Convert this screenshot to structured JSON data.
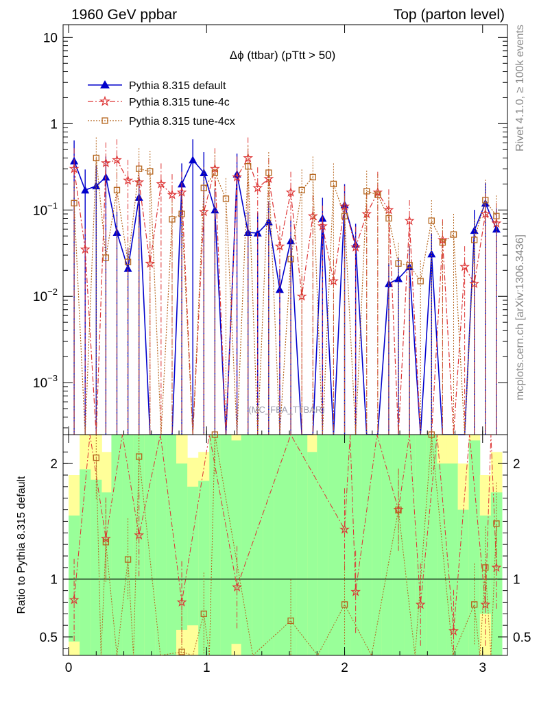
{
  "header": {
    "left": "1960 GeV ppbar",
    "right": "Top (parton level)"
  },
  "side_labels": {
    "rivet": "Rivet 4.1.0, ≥ 100k events",
    "site": "mcplots.cern.ch [arXiv:1306.3436]"
  },
  "watermark": "(MC_FBA_TTBAR)",
  "chart_data": [
    {
      "type": "line",
      "panel": "main",
      "title": "Δϕ (ttbar) (pTtt > 50)",
      "xlabel": "",
      "ylabel": "",
      "yscale": "log",
      "xlim": [
        -0.04,
        3.18
      ],
      "ylim": [
        0.00025,
        14
      ],
      "xticks": [
        "0",
        "1",
        "2",
        "3"
      ],
      "yticks": [
        {
          "value": 10,
          "label": "10"
        },
        {
          "value": 1,
          "label": "1"
        },
        {
          "value": 0.1,
          "label": "10^-1"
        },
        {
          "value": 0.01,
          "label": "10^-2"
        },
        {
          "value": 0.001,
          "label": "10^-3"
        }
      ],
      "legend_position": "top-left",
      "series": [
        {
          "name": "Pythia 8.315 default",
          "color": "#0000cc",
          "marker": "triangle",
          "line": "solid",
          "x": [
            0.04,
            0.12,
            0.2,
            0.27,
            0.35,
            0.43,
            0.51,
            0.59,
            0.67,
            0.75,
            0.82,
            0.9,
            0.98,
            1.06,
            1.14,
            1.22,
            1.3,
            1.37,
            1.45,
            1.53,
            1.61,
            1.69,
            1.77,
            1.84,
            1.92,
            2.0,
            2.08,
            2.16,
            2.24,
            2.32,
            2.39,
            2.47,
            2.55,
            2.63,
            2.71,
            2.79,
            2.87,
            2.94,
            3.02,
            3.1
          ],
          "y": [
            0.37,
            0.17,
            0.19,
            0.24,
            0.055,
            0.021,
            0.14,
            0,
            0,
            0,
            0.2,
            0.38,
            0.27,
            0.1,
            0,
            0.26,
            0.055,
            0.054,
            0.073,
            0.012,
            0.044,
            0,
            0,
            0.08,
            0,
            0.115,
            0.04,
            0,
            0,
            0.014,
            0.016,
            0.022,
            0,
            0.031,
            0,
            0,
            0,
            0.058,
            0.12,
            0.06
          ]
        },
        {
          "name": "Pythia 8.315 tune-4c",
          "color": "#dd3333",
          "marker": "star",
          "line": "dash-dot",
          "x": [
            0.04,
            0.12,
            0.2,
            0.27,
            0.35,
            0.43,
            0.51,
            0.59,
            0.67,
            0.75,
            0.82,
            0.9,
            0.98,
            1.06,
            1.14,
            1.22,
            1.3,
            1.37,
            1.45,
            1.53,
            1.61,
            1.69,
            1.77,
            1.84,
            1.92,
            2.0,
            2.08,
            2.16,
            2.24,
            2.32,
            2.39,
            2.47,
            2.55,
            2.63,
            2.71,
            2.79,
            2.87,
            2.94,
            3.02,
            3.1
          ],
          "y": [
            0.3,
            0.035,
            0,
            0.35,
            0.38,
            0.22,
            0.21,
            0.024,
            0.2,
            0.15,
            0.16,
            0,
            0.095,
            0.3,
            0,
            0.24,
            0.4,
            0.18,
            0.23,
            0.038,
            0.16,
            0.01,
            0.085,
            0.065,
            0.015,
            0.11,
            0.037,
            0.09,
            0.16,
            0.1,
            0,
            0.075,
            0,
            0,
            0.045,
            0,
            0.022,
            0.014,
            0.09,
            0.07
          ]
        },
        {
          "name": "Pythia 8.315 tune-4cx",
          "color": "#b5651d",
          "marker": "open-square",
          "line": "dotted",
          "x": [
            0.04,
            0.12,
            0.2,
            0.27,
            0.35,
            0.43,
            0.51,
            0.59,
            0.67,
            0.75,
            0.82,
            0.9,
            0.98,
            1.06,
            1.14,
            1.22,
            1.3,
            1.37,
            1.45,
            1.53,
            1.61,
            1.69,
            1.77,
            1.84,
            1.92,
            2.0,
            2.08,
            2.16,
            2.24,
            2.32,
            2.39,
            2.47,
            2.55,
            2.63,
            2.71,
            2.79,
            2.87,
            2.94,
            3.02,
            3.1
          ],
          "y": [
            0.12,
            0,
            0.4,
            0.028,
            0.17,
            0.025,
            0.3,
            0.28,
            0,
            0.078,
            0.09,
            0,
            0.18,
            0.27,
            0.135,
            0,
            0.32,
            0,
            0.27,
            0,
            0.027,
            0.17,
            0.24,
            0,
            0.2,
            0.085,
            0,
            0.165,
            0.15,
            0.08,
            0.024,
            0.023,
            0.015,
            0.075,
            0.042,
            0.052,
            0,
            0.045,
            0.13,
            0.085
          ]
        }
      ]
    },
    {
      "type": "line",
      "panel": "ratio",
      "ylabel": "Ratio to Pythia 8.315 default",
      "yscale": "linear",
      "xlim": [
        -0.04,
        3.18
      ],
      "ylim": [
        0.34,
        2.25
      ],
      "xticks": [
        "0",
        "1",
        "2",
        "3"
      ],
      "yticks": [
        "0.5",
        "1",
        "2"
      ],
      "reference": 1,
      "band_bins": [
        {
          "x0": 0.0,
          "x1": 0.08,
          "green": [
            0.46,
            1.55
          ],
          "yellow": [
            0.34,
            1.9
          ]
        },
        {
          "x0": 0.08,
          "x1": 0.16,
          "green": [
            0.34,
            1.95
          ],
          "yellow": [
            0.34,
            2.25
          ]
        },
        {
          "x0": 0.16,
          "x1": 0.24,
          "green": [
            0.34,
            1.86
          ],
          "yellow": [
            0.34,
            2.25
          ]
        },
        {
          "x0": 0.24,
          "x1": 0.31,
          "green": [
            0.34,
            1.75
          ],
          "yellow": [
            0.34,
            2.1
          ]
        },
        {
          "x0": 0.31,
          "x1": 0.39,
          "green": [
            0.34,
            2.25
          ],
          "yellow": [
            0.34,
            2.25
          ]
        },
        {
          "x0": 0.39,
          "x1": 0.47,
          "green": [
            0.34,
            2.25
          ],
          "yellow": [
            0.34,
            2.25
          ]
        },
        {
          "x0": 0.47,
          "x1": 0.55,
          "green": [
            0.34,
            2.25
          ],
          "yellow": [
            0.34,
            2.25
          ]
        },
        {
          "x0": 0.55,
          "x1": 0.63,
          "green": [
            0.34,
            2.25
          ],
          "yellow": [
            0.34,
            2.25
          ]
        },
        {
          "x0": 0.63,
          "x1": 0.71,
          "green": [
            0.34,
            2.25
          ],
          "yellow": [
            0.34,
            2.25
          ]
        },
        {
          "x0": 0.71,
          "x1": 0.78,
          "green": [
            0.34,
            2.25
          ],
          "yellow": [
            0.34,
            2.25
          ]
        },
        {
          "x0": 0.78,
          "x1": 0.86,
          "green": [
            0.56,
            2.0
          ],
          "yellow": [
            0.34,
            2.25
          ]
        },
        {
          "x0": 0.86,
          "x1": 0.94,
          "green": [
            0.6,
            1.8
          ],
          "yellow": [
            0.34,
            2.05
          ]
        },
        {
          "x0": 0.94,
          "x1": 1.02,
          "green": [
            0.34,
            1.85
          ],
          "yellow": [
            0.34,
            2.1
          ]
        },
        {
          "x0": 1.02,
          "x1": 1.1,
          "green": [
            0.34,
            2.25
          ],
          "yellow": [
            0.34,
            2.25
          ]
        },
        {
          "x0": 1.1,
          "x1": 1.18,
          "green": [
            0.34,
            2.25
          ],
          "yellow": [
            0.34,
            2.25
          ]
        },
        {
          "x0": 1.18,
          "x1": 1.25,
          "green": [
            0.44,
            2.2
          ],
          "yellow": [
            0.34,
            2.25
          ]
        },
        {
          "x0": 1.25,
          "x1": 1.33,
          "green": [
            0.34,
            2.25
          ],
          "yellow": [
            0.34,
            2.25
          ]
        },
        {
          "x0": 1.33,
          "x1": 1.41,
          "green": [
            0.34,
            2.25
          ],
          "yellow": [
            0.34,
            2.25
          ]
        },
        {
          "x0": 1.41,
          "x1": 1.49,
          "green": [
            0.34,
            2.25
          ],
          "yellow": [
            0.34,
            2.25
          ]
        },
        {
          "x0": 1.49,
          "x1": 1.57,
          "green": [
            0.34,
            2.25
          ],
          "yellow": [
            0.34,
            2.25
          ]
        },
        {
          "x0": 1.57,
          "x1": 1.65,
          "green": [
            0.34,
            2.25
          ],
          "yellow": [
            0.34,
            2.25
          ]
        },
        {
          "x0": 1.65,
          "x1": 1.73,
          "green": [
            0.34,
            2.25
          ],
          "yellow": [
            0.34,
            2.25
          ]
        },
        {
          "x0": 1.73,
          "x1": 1.8,
          "green": [
            0.34,
            2.1
          ],
          "yellow": [
            0.34,
            2.25
          ]
        },
        {
          "x0": 1.8,
          "x1": 1.88,
          "green": [
            0.34,
            2.25
          ],
          "yellow": [
            0.34,
            2.25
          ]
        },
        {
          "x0": 1.88,
          "x1": 1.96,
          "green": [
            0.34,
            2.25
          ],
          "yellow": [
            0.34,
            2.25
          ]
        },
        {
          "x0": 1.96,
          "x1": 2.04,
          "green": [
            0.34,
            2.25
          ],
          "yellow": [
            0.34,
            2.25
          ]
        },
        {
          "x0": 2.04,
          "x1": 2.12,
          "green": [
            0.34,
            2.25
          ],
          "yellow": [
            0.34,
            2.25
          ]
        },
        {
          "x0": 2.12,
          "x1": 2.2,
          "green": [
            0.34,
            2.25
          ],
          "yellow": [
            0.34,
            2.25
          ]
        },
        {
          "x0": 2.2,
          "x1": 2.27,
          "green": [
            0.34,
            2.25
          ],
          "yellow": [
            0.34,
            2.25
          ]
        },
        {
          "x0": 2.27,
          "x1": 2.35,
          "green": [
            0.34,
            2.25
          ],
          "yellow": [
            0.34,
            2.25
          ]
        },
        {
          "x0": 2.35,
          "x1": 2.43,
          "green": [
            0.34,
            2.25
          ],
          "yellow": [
            0.34,
            2.25
          ]
        },
        {
          "x0": 2.43,
          "x1": 2.51,
          "green": [
            0.34,
            2.25
          ],
          "yellow": [
            0.34,
            2.25
          ]
        },
        {
          "x0": 2.51,
          "x1": 2.59,
          "green": [
            0.34,
            2.25
          ],
          "yellow": [
            0.34,
            2.25
          ]
        },
        {
          "x0": 2.59,
          "x1": 2.67,
          "green": [
            0.34,
            2.25
          ],
          "yellow": [
            0.34,
            2.25
          ]
        },
        {
          "x0": 2.67,
          "x1": 2.74,
          "green": [
            0.34,
            2.0
          ],
          "yellow": [
            0.34,
            2.25
          ]
        },
        {
          "x0": 2.74,
          "x1": 2.82,
          "green": [
            0.34,
            2.0
          ],
          "yellow": [
            0.34,
            2.25
          ]
        },
        {
          "x0": 2.82,
          "x1": 2.9,
          "green": [
            0.34,
            1.6
          ],
          "yellow": [
            0.34,
            2.0
          ]
        },
        {
          "x0": 2.9,
          "x1": 2.98,
          "green": [
            0.34,
            2.2
          ],
          "yellow": [
            0.34,
            2.25
          ]
        },
        {
          "x0": 2.98,
          "x1": 3.06,
          "green": [
            0.7,
            1.55
          ],
          "yellow": [
            0.34,
            1.9
          ]
        },
        {
          "x0": 3.06,
          "x1": 3.14,
          "green": [
            0.34,
            1.75
          ],
          "yellow": [
            0.34,
            2.1
          ]
        }
      ],
      "series": [
        {
          "name": "Pythia 8.315 tune-4c",
          "color": "#dd3333",
          "marker": "star",
          "line": "dash-dot",
          "x": [
            0.04,
            0.27,
            0.51,
            0.82,
            1.22,
            2.0,
            2.08,
            2.39,
            2.55,
            2.79,
            3.02,
            3.1
          ],
          "y": [
            0.82,
            1.35,
            1.38,
            0.8,
            0.93,
            1.43,
            0.89,
            1.6,
            0.78,
            0.55,
            0.78,
            1.1
          ]
        },
        {
          "name": "Pythia 8.315 tune-4cx",
          "color": "#b5651d",
          "marker": "open-square",
          "line": "dotted",
          "x": [
            0.2,
            0.27,
            0.43,
            0.51,
            0.82,
            0.98,
            1.06,
            1.61,
            2.0,
            2.39,
            2.63,
            2.94,
            3.02,
            3.1
          ],
          "y": [
            2.05,
            1.32,
            1.17,
            2.06,
            0.37,
            0.7,
            2.25,
            0.64,
            0.78,
            1.6,
            2.25,
            0.78,
            1.1,
            1.48
          ]
        }
      ]
    }
  ]
}
